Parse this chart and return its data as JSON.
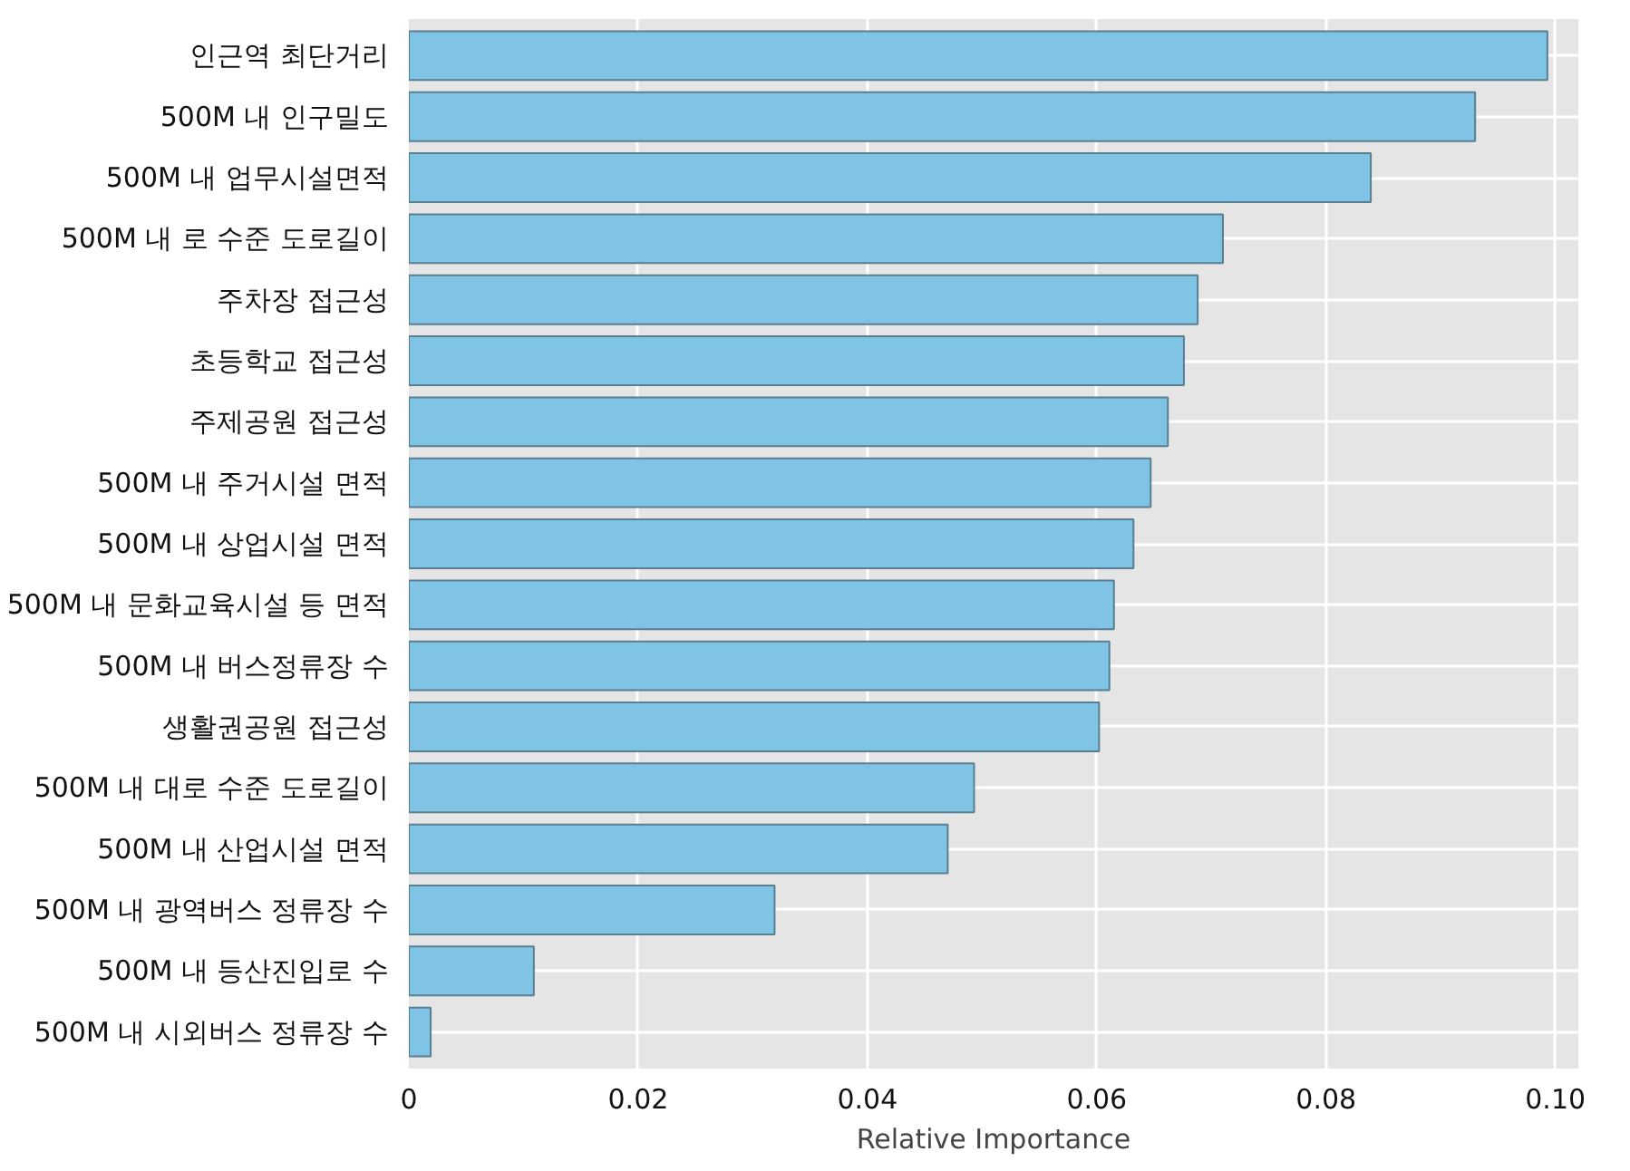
{
  "chart_data": {
    "type": "bar",
    "orientation": "horizontal",
    "xlabel": "Relative Importance",
    "categories": [
      "인근역 최단거리",
      "500M 내 인구밀도",
      "500M 내 업무시설면적",
      "500M 내 로 수준 도로길이",
      "주차장 접근성",
      "초등학교 접근성",
      "주제공원 접근성",
      "500M 내 주거시설 면적",
      "500M 내 상업시설 면적",
      "500M 내 문화교육시설 등 면적",
      "500M 내 버스정류장 수",
      "생활권공원 접근성",
      "500M 내 대로 수준 도로길이",
      "500M 내 산업시설 면적",
      "500M 내 광역버스 정류장 수",
      "500M 내 등산진입로 수",
      "500M 내 시외버스 정류장 수"
    ],
    "values": [
      0.0993,
      0.093,
      0.0839,
      0.071,
      0.0688,
      0.0676,
      0.0662,
      0.0647,
      0.0632,
      0.0615,
      0.0611,
      0.0602,
      0.0493,
      0.047,
      0.0319,
      0.0109,
      0.0019
    ],
    "color": "#7fc4e4",
    "xlim": [
      0,
      0.102
    ],
    "xticks": [
      {
        "value": 0,
        "label": "0"
      },
      0.02,
      0.04,
      0.06,
      0.08,
      {
        "value": 0.1,
        "label": "0.10"
      }
    ],
    "grid": true
  }
}
